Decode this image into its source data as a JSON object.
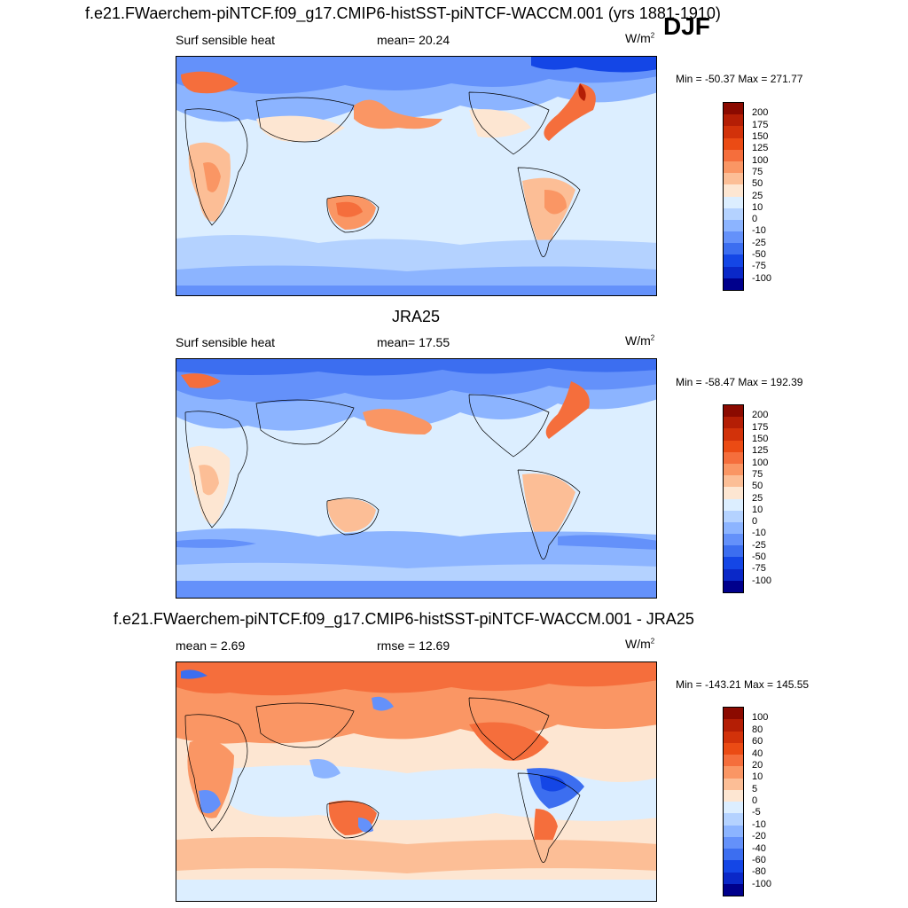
{
  "figure": {
    "title": "f.e21.FWaerchem-piNTCF.f09_g17.CMIP6-histSST-piNTCF-WACCM.001 (yrs 1881-1910)",
    "season": "DJF"
  },
  "panels": [
    {
      "id": "model",
      "title": "",
      "left": "Surf sensible heat",
      "center": "mean=  20.24",
      "units": "W/m",
      "units_sup": "2",
      "minmax": "Min = -50.37 Max = 271.77",
      "palette": "absolute"
    },
    {
      "id": "obs",
      "title": "JRA25",
      "left": "Surf sensible heat",
      "center": "mean=  17.55",
      "units": "W/m",
      "units_sup": "2",
      "minmax": "Min = -58.47 Max = 192.39",
      "palette": "absolute"
    },
    {
      "id": "diff",
      "title": "f.e21.FWaerchem-piNTCF.f09_g17.CMIP6-histSST-piNTCF-WACCM.001 - JRA25",
      "left": "mean =   2.69",
      "center": "rmse =  12.69",
      "units": "W/m",
      "units_sup": "2",
      "minmax": "Min = -143.21 Max = 145.55",
      "palette": "difference"
    }
  ],
  "colorbars": {
    "absolute": {
      "labels": [
        "200",
        "175",
        "150",
        "125",
        "100",
        "75",
        "50",
        "25",
        "10",
        "0",
        "-10",
        "-25",
        "-50",
        "-75",
        "-100"
      ],
      "colors": [
        "#8b0a00",
        "#b41e05",
        "#d2320a",
        "#eb4b14",
        "#f56e3c",
        "#fa9664",
        "#fcbe96",
        "#fde6d2",
        "#dceeff",
        "#b4d2ff",
        "#8cb4ff",
        "#6491fa",
        "#3c6ef0",
        "#1446e6",
        "#0a28c8",
        "#00008c"
      ]
    },
    "difference": {
      "labels": [
        "100",
        "80",
        "60",
        "40",
        "20",
        "10",
        "5",
        "0",
        "-5",
        "-10",
        "-20",
        "-40",
        "-60",
        "-80",
        "-100"
      ],
      "colors": [
        "#8b0a00",
        "#b41e05",
        "#d2320a",
        "#eb4b14",
        "#f56e3c",
        "#fa9664",
        "#fcbe96",
        "#fde6d2",
        "#dceeff",
        "#b4d2ff",
        "#8cb4ff",
        "#6491fa",
        "#3c6ef0",
        "#1446e6",
        "#0a28c8",
        "#00008c"
      ]
    }
  },
  "map_colors": {
    "ocean": "#dceeff",
    "cold": "#8cb4ff",
    "colder": "#6491fa",
    "coldest": "#1446e6",
    "warm": "#fcbe96",
    "warmer": "#f56e3c",
    "hot": "#d2320a",
    "pale": "#fde6d2"
  }
}
